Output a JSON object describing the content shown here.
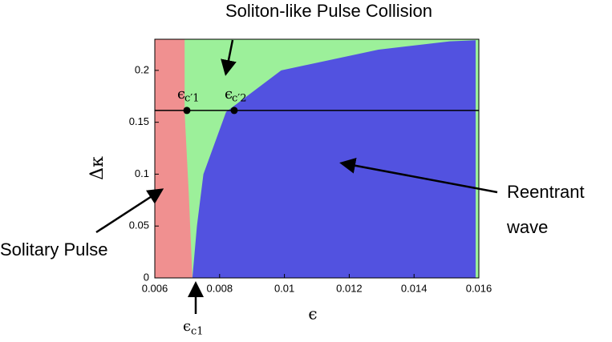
{
  "chart_data": {
    "type": "phase",
    "title": "Soliton-like Pulse Collision",
    "xlabel": "ϵ",
    "ylabel": "Δκ",
    "xlim": [
      0.006,
      0.016
    ],
    "ylim": [
      0,
      0.23
    ],
    "xticks": [
      0.006,
      0.008,
      0.01,
      0.012,
      0.014,
      0.016
    ],
    "yticks": [
      0,
      0.05,
      0.1,
      0.15,
      0.2
    ],
    "background_color": "#9cf09a",
    "regions": [
      {
        "name": "Solitary Pulse",
        "color": "#f09090",
        "x": [
          0.00692,
          0.00692,
          0.00705,
          0.00716
        ],
        "values": [
          0.23,
          0.16,
          0.08,
          0
        ]
      },
      {
        "name": "Reentrant",
        "color": "#5252e0",
        "x": [
          0.00716,
          0.0073,
          0.0075,
          0.0082,
          0.0099,
          0.0129,
          0.0151,
          0.0159
        ],
        "values": [
          0,
          0.05,
          0.1,
          0.16,
          0.2,
          0.22,
          0.228,
          0.229
        ]
      }
    ],
    "region_label_extra": "wave",
    "hline": 0.1614,
    "points": [
      {
        "x": 0.00699,
        "y": 0.1614,
        "label": "ϵ",
        "sub": "c′1"
      },
      {
        "x": 0.00845,
        "y": 0.1614,
        "label": "ϵ",
        "sub": "c′2"
      }
    ],
    "critical": {
      "label": "ϵ",
      "sub": "c1"
    }
  }
}
